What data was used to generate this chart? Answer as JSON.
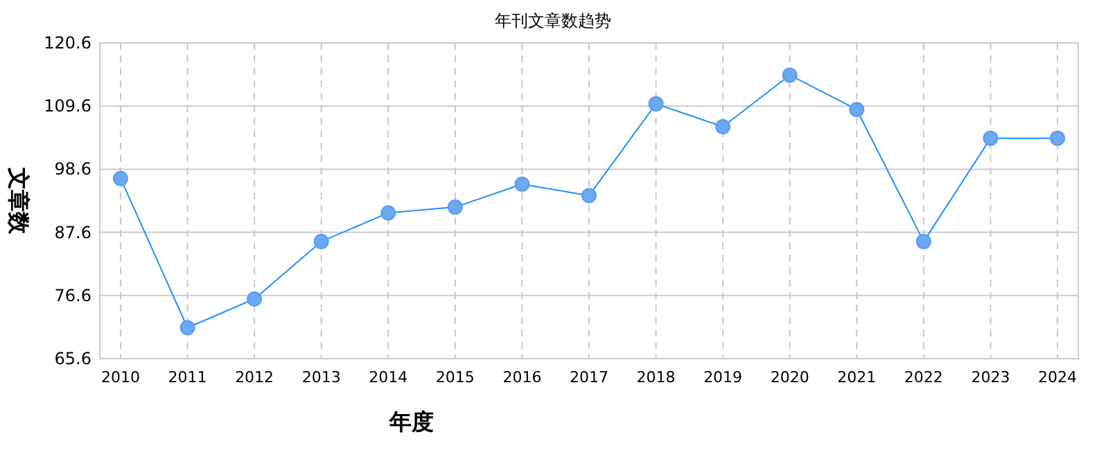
{
  "chart_data": {
    "type": "line",
    "title": "年刊文章数趋势",
    "xlabel": "年度",
    "ylabel": "文章数",
    "categories": [
      "2010",
      "2011",
      "2012",
      "2013",
      "2014",
      "2015",
      "2016",
      "2017",
      "2018",
      "2019",
      "2020",
      "2021",
      "2022",
      "2023",
      "2024"
    ],
    "series": [
      {
        "color": "#1e90ff",
        "values": [
          97,
          71,
          76,
          86,
          91,
          92,
          96,
          94,
          110,
          106,
          115,
          109,
          86,
          104,
          104
        ]
      }
    ],
    "ylim": [
      65.6,
      120.6
    ],
    "yticks": [
      65.6,
      76.6,
      87.6,
      98.6,
      109.6,
      120.6
    ],
    "grid": true,
    "marker": "circle",
    "line_style": "solid"
  }
}
